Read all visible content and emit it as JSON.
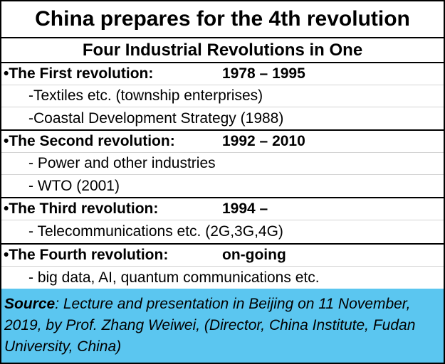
{
  "title": "China prepares for the 4th revolution",
  "subtitle": "Four Industrial Revolutions in One",
  "revolutions": [
    {
      "label": "•The First revolution:",
      "period": "1978 – 1995",
      "items": [
        "-Textiles etc. (township enterprises)",
        "-Coastal Development Strategy (1988)"
      ]
    },
    {
      "label": "•The Second revolution:",
      "period": "1992 – 2010",
      "items": [
        "-  Power and other industries",
        "-  WTO (2001)"
      ]
    },
    {
      "label": "•The Third revolution:",
      "period": "1994 –",
      "items": [
        "- Telecommunications etc.  (2G,3G,4G)"
      ]
    },
    {
      "label": "•The Fourth revolution:",
      "period": "on-going",
      "items": [
        "- big data, AI, quantum communications  etc."
      ]
    }
  ],
  "source": {
    "label": "Source",
    "text": ": Lecture and presentation in Beijing on 11 November, 2019,  by Prof. Zhang Weiwei, (Director, China Institute, Fudan University, China)"
  },
  "colors": {
    "source_background": "#5bc6f0",
    "border": "#000000",
    "divider": "#d4d4d4"
  }
}
